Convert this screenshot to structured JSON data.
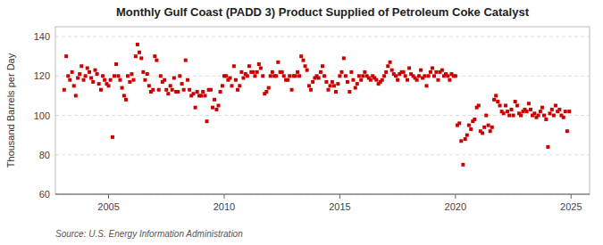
{
  "chart_data": {
    "type": "scatter",
    "title": "Monthly Gulf Coast (PADD 3) Product Supplied of Petroleum Coke Catalyst",
    "ylabel": "Thousand Barrels per Day",
    "source": "Source: U.S. Energy Information Administration",
    "color": "#cc0000",
    "marker": "square",
    "grid": true,
    "xlim": [
      2002.7,
      2025.8
    ],
    "ylim": [
      60,
      145
    ],
    "xticks": [
      2005,
      2010,
      2015,
      2020,
      2025
    ],
    "yticks": [
      60,
      80,
      100,
      120,
      140
    ],
    "x": [
      2003.08,
      2003.17,
      2003.25,
      2003.33,
      2003.42,
      2003.5,
      2003.58,
      2003.67,
      2003.75,
      2003.83,
      2003.92,
      2004.0,
      2004.08,
      2004.17,
      2004.25,
      2004.33,
      2004.42,
      2004.5,
      2004.58,
      2004.67,
      2004.75,
      2004.83,
      2004.92,
      2005.0,
      2005.08,
      2005.17,
      2005.25,
      2005.33,
      2005.42,
      2005.5,
      2005.58,
      2005.67,
      2005.75,
      2005.83,
      2005.92,
      2006.0,
      2006.08,
      2006.17,
      2006.25,
      2006.33,
      2006.42,
      2006.5,
      2006.58,
      2006.67,
      2006.75,
      2006.83,
      2006.92,
      2007.0,
      2007.08,
      2007.17,
      2007.25,
      2007.33,
      2007.42,
      2007.5,
      2007.58,
      2007.67,
      2007.75,
      2007.83,
      2007.92,
      2008.0,
      2008.08,
      2008.17,
      2008.25,
      2008.33,
      2008.42,
      2008.5,
      2008.58,
      2008.67,
      2008.75,
      2008.83,
      2008.92,
      2009.0,
      2009.08,
      2009.17,
      2009.25,
      2009.33,
      2009.42,
      2009.5,
      2009.58,
      2009.67,
      2009.75,
      2009.83,
      2009.92,
      2010.0,
      2010.08,
      2010.17,
      2010.25,
      2010.33,
      2010.42,
      2010.5,
      2010.58,
      2010.67,
      2010.75,
      2010.83,
      2010.92,
      2011.0,
      2011.08,
      2011.17,
      2011.25,
      2011.33,
      2011.42,
      2011.5,
      2011.58,
      2011.67,
      2011.75,
      2011.83,
      2011.92,
      2012.0,
      2012.08,
      2012.17,
      2012.25,
      2012.33,
      2012.42,
      2012.5,
      2012.58,
      2012.67,
      2012.75,
      2012.83,
      2012.92,
      2013.0,
      2013.08,
      2013.17,
      2013.25,
      2013.33,
      2013.42,
      2013.5,
      2013.58,
      2013.67,
      2013.75,
      2013.83,
      2013.92,
      2014.0,
      2014.08,
      2014.17,
      2014.25,
      2014.33,
      2014.42,
      2014.5,
      2014.58,
      2014.67,
      2014.75,
      2014.83,
      2014.92,
      2015.0,
      2015.08,
      2015.17,
      2015.25,
      2015.33,
      2015.42,
      2015.5,
      2015.58,
      2015.67,
      2015.75,
      2015.83,
      2015.92,
      2016.0,
      2016.08,
      2016.17,
      2016.25,
      2016.33,
      2016.42,
      2016.5,
      2016.58,
      2016.67,
      2016.75,
      2016.83,
      2016.92,
      2017.0,
      2017.08,
      2017.17,
      2017.25,
      2017.33,
      2017.42,
      2017.5,
      2017.58,
      2017.67,
      2017.75,
      2017.83,
      2017.92,
      2018.0,
      2018.08,
      2018.17,
      2018.25,
      2018.33,
      2018.42,
      2018.5,
      2018.58,
      2018.67,
      2018.75,
      2018.83,
      2018.92,
      2019.0,
      2019.08,
      2019.17,
      2019.25,
      2019.33,
      2019.42,
      2019.5,
      2019.58,
      2019.67,
      2019.75,
      2019.83,
      2019.92,
      2020.0,
      2020.08,
      2020.17,
      2020.25,
      2020.33,
      2020.42,
      2020.5,
      2020.58,
      2020.67,
      2020.75,
      2020.83,
      2020.92,
      2021.0,
      2021.08,
      2021.17,
      2021.25,
      2021.33,
      2021.42,
      2021.5,
      2021.58,
      2021.67,
      2021.75,
      2021.83,
      2021.92,
      2022.0,
      2022.08,
      2022.17,
      2022.25,
      2022.33,
      2022.42,
      2022.5,
      2022.58,
      2022.67,
      2022.75,
      2022.83,
      2022.92,
      2023.0,
      2023.08,
      2023.17,
      2023.25,
      2023.33,
      2023.42,
      2023.5,
      2023.58,
      2023.67,
      2023.75,
      2023.83,
      2023.92,
      2024.0,
      2024.08,
      2024.17,
      2024.25,
      2024.33,
      2024.42,
      2024.5,
      2024.58,
      2024.67,
      2024.75,
      2024.83,
      2024.92
    ],
    "values": [
      113,
      130,
      120,
      118,
      122,
      115,
      110,
      119,
      121,
      125,
      118,
      120,
      124,
      122,
      119,
      117,
      123,
      121,
      116,
      113,
      120,
      118,
      116,
      115,
      118,
      89,
      120,
      126,
      120,
      118,
      114,
      110,
      108,
      120,
      117,
      121,
      118,
      130,
      136,
      132,
      129,
      122,
      118,
      121,
      115,
      112,
      113,
      130,
      128,
      113,
      120,
      117,
      118,
      113,
      111,
      115,
      113,
      119,
      112,
      112,
      120,
      116,
      113,
      128,
      118,
      113,
      110,
      111,
      104,
      112,
      110,
      110,
      112,
      110,
      97,
      113,
      113,
      104,
      108,
      103,
      105,
      112,
      115,
      120,
      120,
      118,
      119,
      115,
      125,
      118,
      113,
      115,
      122,
      119,
      121,
      120,
      125,
      122,
      122,
      120,
      122,
      126,
      124,
      120,
      111,
      112,
      114,
      120,
      122,
      120,
      120,
      127,
      122,
      122,
      120,
      118,
      118,
      120,
      113,
      120,
      120,
      122,
      120,
      130,
      128,
      125,
      123,
      115,
      113,
      117,
      119,
      120,
      119,
      122,
      125,
      120,
      117,
      113,
      115,
      117,
      115,
      112,
      116,
      120,
      122,
      129,
      120,
      117,
      112,
      122,
      118,
      114,
      116,
      120,
      118,
      120,
      122,
      120,
      119,
      118,
      120,
      119,
      118,
      116,
      117,
      118,
      120,
      122,
      125,
      127,
      123,
      121,
      120,
      118,
      121,
      122,
      122,
      120,
      118,
      124,
      121,
      120,
      119,
      118,
      120,
      123,
      119,
      120,
      115,
      120,
      122,
      124,
      120,
      122,
      118,
      122,
      123,
      120,
      121,
      120,
      118,
      121,
      120,
      120,
      95,
      96,
      87,
      75,
      88,
      90,
      95,
      93,
      97,
      98,
      104,
      105,
      92,
      91,
      94,
      100,
      95,
      92,
      94,
      108,
      110,
      107,
      105,
      102,
      101,
      105,
      102,
      100,
      103,
      100,
      107,
      105,
      101,
      100,
      102,
      103,
      102,
      106,
      103,
      100,
      101,
      99,
      100,
      102,
      104,
      100,
      98,
      84,
      101,
      103,
      100,
      105,
      102,
      103,
      100,
      99,
      102,
      92,
      102
    ]
  }
}
